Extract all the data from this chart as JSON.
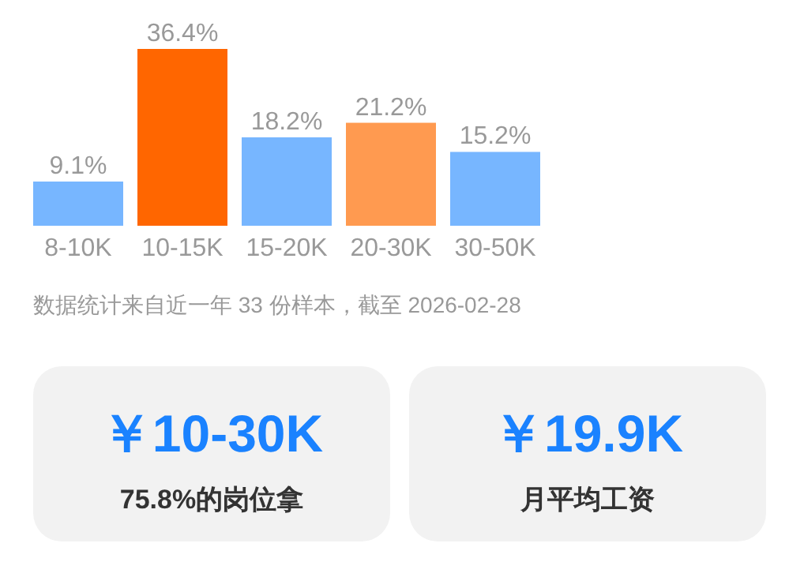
{
  "chart_data": [
    {
      "type": "bar",
      "categories": [
        "8-10K",
        "10-15K",
        "15-20K",
        "20-30K",
        "30-50K"
      ],
      "values": [
        9.1,
        36.4,
        18.2,
        21.2,
        15.2
      ],
      "colors": [
        "#77b6ff",
        "#ff6600",
        "#77b6ff",
        "#ff9a50",
        "#77b6ff"
      ],
      "value_labels": [
        "9.1%",
        "36.4%",
        "18.2%",
        "21.2%",
        "15.2%"
      ],
      "annotations": [
        "数据统计来自近一年 33 份样本，截至 2026-02-28"
      ]
    },
    {
      "type": "other",
      "annotations": [
        "￥10-30K",
        "75.8%的岗位拿"
      ]
    },
    {
      "type": "other",
      "annotations": [
        "￥19.9K",
        "月平均工资"
      ]
    }
  ]
}
